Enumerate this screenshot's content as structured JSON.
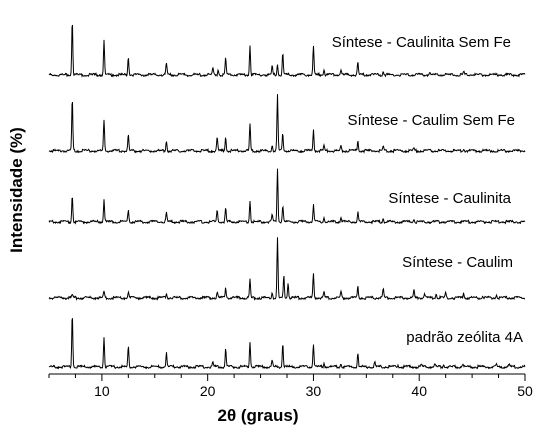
{
  "chart_data": {
    "type": "line",
    "title": "",
    "xlabel": "2θ (graus)",
    "ylabel": "Intensidade (%)",
    "xlim": [
      5,
      50
    ],
    "xticks": [
      10,
      20,
      30,
      40,
      50
    ],
    "grid": false,
    "legend": "none",
    "line_color": "#000000",
    "series": [
      {
        "name": "Síntese - Caulinita Sem Fe",
        "peaks": [
          [
            7.2,
            62
          ],
          [
            10.2,
            38
          ],
          [
            12.5,
            20
          ],
          [
            16.1,
            13
          ],
          [
            20.5,
            7
          ],
          [
            21.0,
            6
          ],
          [
            21.7,
            19
          ],
          [
            24.0,
            33
          ],
          [
            26.1,
            10
          ],
          [
            26.6,
            12
          ],
          [
            27.1,
            24
          ],
          [
            30.0,
            32
          ],
          [
            31.0,
            6
          ],
          [
            32.6,
            6
          ],
          [
            34.2,
            14
          ],
          [
            36.6,
            5
          ],
          [
            41.0,
            3
          ],
          [
            44.2,
            3
          ]
        ]
      },
      {
        "name": "Síntese - Caulim Sem Fe",
        "peaks": [
          [
            7.2,
            58
          ],
          [
            10.2,
            34
          ],
          [
            12.5,
            18
          ],
          [
            16.1,
            11
          ],
          [
            20.9,
            15
          ],
          [
            21.7,
            16
          ],
          [
            24.0,
            30
          ],
          [
            26.1,
            7
          ],
          [
            26.6,
            62
          ],
          [
            27.1,
            20
          ],
          [
            30.0,
            24
          ],
          [
            31.0,
            6
          ],
          [
            32.6,
            5
          ],
          [
            34.2,
            12
          ],
          [
            36.6,
            4
          ],
          [
            39.5,
            3
          ],
          [
            44.2,
            3
          ]
        ]
      },
      {
        "name": "Síntese - Caulinita",
        "peaks": [
          [
            7.2,
            30
          ],
          [
            10.2,
            25
          ],
          [
            12.5,
            14
          ],
          [
            16.1,
            10
          ],
          [
            20.9,
            14
          ],
          [
            21.7,
            15
          ],
          [
            24.0,
            24
          ],
          [
            26.1,
            7
          ],
          [
            26.6,
            60
          ],
          [
            27.1,
            19
          ],
          [
            30.0,
            19
          ],
          [
            31.0,
            5
          ],
          [
            32.6,
            5
          ],
          [
            34.2,
            11
          ],
          [
            36.6,
            4
          ],
          [
            39.5,
            3
          ]
        ]
      },
      {
        "name": "Síntese - Caulim",
        "peaks": [
          [
            7.2,
            3
          ],
          [
            10.2,
            7
          ],
          [
            12.5,
            6
          ],
          [
            16.1,
            5
          ],
          [
            20.9,
            7
          ],
          [
            21.7,
            12
          ],
          [
            24.0,
            20
          ],
          [
            26.1,
            6
          ],
          [
            26.6,
            66
          ],
          [
            27.2,
            24
          ],
          [
            27.6,
            17
          ],
          [
            30.0,
            27
          ],
          [
            31.0,
            6
          ],
          [
            32.6,
            7
          ],
          [
            34.2,
            12
          ],
          [
            36.6,
            10
          ],
          [
            39.5,
            8
          ],
          [
            40.5,
            5
          ],
          [
            41.6,
            5
          ],
          [
            42.5,
            5
          ],
          [
            44.2,
            6
          ],
          [
            46.0,
            3
          ],
          [
            47.3,
            4
          ]
        ]
      },
      {
        "name": "padrão zeólita 4A",
        "peaks": [
          [
            7.2,
            60
          ],
          [
            10.2,
            33
          ],
          [
            12.5,
            22
          ],
          [
            16.1,
            15
          ],
          [
            20.5,
            5
          ],
          [
            21.7,
            20
          ],
          [
            24.0,
            28
          ],
          [
            26.1,
            7
          ],
          [
            27.1,
            27
          ],
          [
            30.0,
            26
          ],
          [
            31.0,
            4
          ],
          [
            32.6,
            4
          ],
          [
            34.2,
            16
          ],
          [
            35.8,
            5
          ],
          [
            38.0,
            2
          ],
          [
            40.2,
            3
          ],
          [
            41.5,
            3
          ],
          [
            42.3,
            3
          ],
          [
            44.1,
            3
          ],
          [
            47.3,
            3
          ],
          [
            48.5,
            2
          ]
        ]
      }
    ]
  }
}
